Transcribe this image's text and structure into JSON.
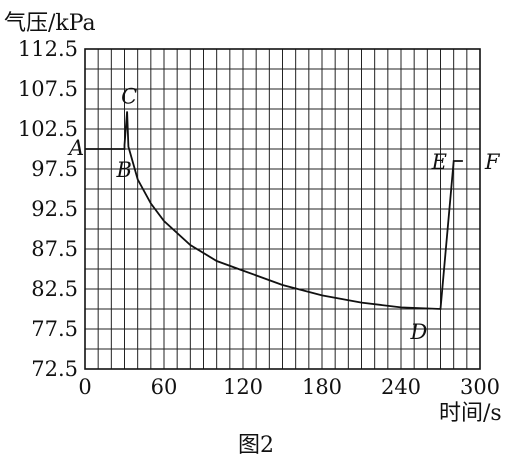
{
  "chart_data": {
    "type": "line",
    "ylabel": "气压/kPa",
    "xlabel": "时间/s",
    "caption": "图2",
    "xlim": [
      0,
      300
    ],
    "ylim": [
      72.5,
      112.5
    ],
    "x_ticks": [
      "0",
      "60",
      "120",
      "180",
      "240",
      "300"
    ],
    "y_ticks": [
      "112.5",
      "107.5",
      "102.5",
      "97.5",
      "92.5",
      "87.5",
      "82.5",
      "77.5",
      "72.5"
    ],
    "grid": true,
    "series": [
      {
        "points": [
          [
            0,
            100.0
          ],
          [
            30,
            100.0
          ],
          [
            30,
            100.5
          ],
          [
            32,
            104.7
          ],
          [
            33,
            100.3
          ],
          [
            40,
            96.2
          ],
          [
            50,
            93.2
          ],
          [
            60,
            91.0
          ],
          [
            80,
            88.0
          ],
          [
            100,
            86.0
          ],
          [
            120,
            84.8
          ],
          [
            150,
            83.0
          ],
          [
            180,
            81.7
          ],
          [
            210,
            80.8
          ],
          [
            240,
            80.2
          ],
          [
            270,
            80.0
          ],
          [
            280,
            98.5
          ],
          [
            287,
            98.5
          ]
        ]
      }
    ],
    "annotations": [
      {
        "text": "A",
        "x": 0,
        "y": 100.0
      },
      {
        "text": "B",
        "x": 30,
        "y": 100.0
      },
      {
        "text": "C",
        "x": 32,
        "y": 104.7
      },
      {
        "text": "D",
        "x": 270,
        "y": 80.0
      },
      {
        "text": "E",
        "x": 280,
        "y": 98.5
      },
      {
        "text": "F",
        "x": 287,
        "y": 98.5
      }
    ]
  }
}
